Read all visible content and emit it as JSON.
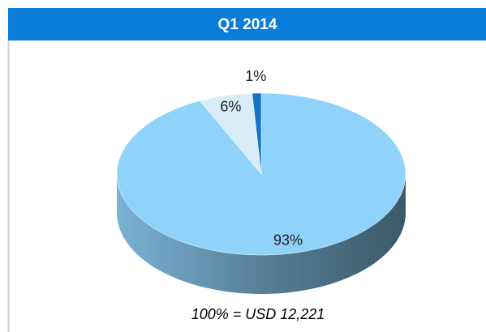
{
  "chart_data": {
    "type": "pie",
    "title": "Q1 2014",
    "values": [
      93,
      6,
      1
    ],
    "value_labels": [
      "93%",
      "6%",
      "1%"
    ],
    "colors": [
      "#8fd3fb",
      "#d8edf7",
      "#1574c8"
    ],
    "note": "100% = USD 12,221"
  }
}
